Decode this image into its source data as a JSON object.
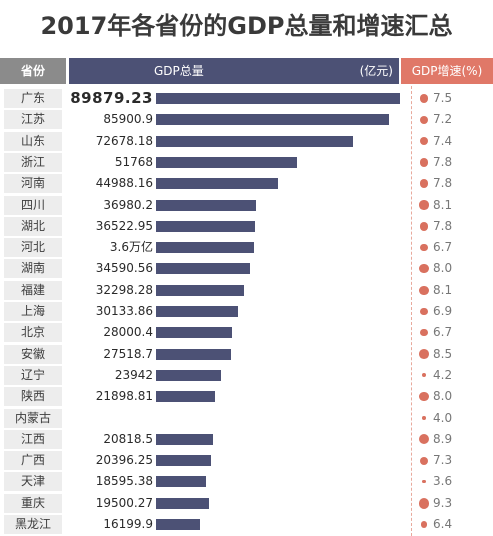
{
  "title": "2017年各省份的GDP总量和增速汇总",
  "header": {
    "province": "省份",
    "gdp": "GDP总量",
    "unit": "(亿元)",
    "growth": "GDP增速(%)"
  },
  "colors": {
    "bar": "#4c5175",
    "dot": "#d9715f",
    "growth_header": "#e07868"
  },
  "chart_data": {
    "type": "table",
    "title": "2017年各省份的GDP总量和增速汇总",
    "columns": [
      "省份",
      "GDP总量 (亿元)",
      "GDP增速(%)"
    ],
    "rows": [
      {
        "province": "广东",
        "gdp_text": "89879.23",
        "gdp": 89879.23,
        "growth_text": "7.5",
        "growth": 7.5
      },
      {
        "province": "江苏",
        "gdp_text": "85900.9",
        "gdp": 85900.9,
        "growth_text": "7.2",
        "growth": 7.2
      },
      {
        "province": "山东",
        "gdp_text": "72678.18",
        "gdp": 72678.18,
        "growth_text": "7.4",
        "growth": 7.4
      },
      {
        "province": "浙江",
        "gdp_text": "51768",
        "gdp": 51768,
        "growth_text": "7.8",
        "growth": 7.8
      },
      {
        "province": "河南",
        "gdp_text": "44988.16",
        "gdp": 44988.16,
        "growth_text": "7.8",
        "growth": 7.8
      },
      {
        "province": "四川",
        "gdp_text": "36980.2",
        "gdp": 36980.2,
        "growth_text": "8.1",
        "growth": 8.1
      },
      {
        "province": "湖北",
        "gdp_text": "36522.95",
        "gdp": 36522.95,
        "growth_text": "7.8",
        "growth": 7.8
      },
      {
        "province": "河北",
        "gdp_text": "3.6万亿",
        "gdp": 36000,
        "growth_text": "6.7",
        "growth": 6.7
      },
      {
        "province": "湖南",
        "gdp_text": "34590.56",
        "gdp": 34590.56,
        "growth_text": "8.0",
        "growth": 8.0
      },
      {
        "province": "福建",
        "gdp_text": "32298.28",
        "gdp": 32298.28,
        "growth_text": "8.1",
        "growth": 8.1
      },
      {
        "province": "上海",
        "gdp_text": "30133.86",
        "gdp": 30133.86,
        "growth_text": "6.9",
        "growth": 6.9
      },
      {
        "province": "北京",
        "gdp_text": "28000.4",
        "gdp": 28000.4,
        "growth_text": "6.7",
        "growth": 6.7
      },
      {
        "province": "安徽",
        "gdp_text": "27518.7",
        "gdp": 27518.7,
        "growth_text": "8.5",
        "growth": 8.5
      },
      {
        "province": "辽宁",
        "gdp_text": "23942",
        "gdp": 23942,
        "growth_text": "4.2",
        "growth": 4.2
      },
      {
        "province": "陕西",
        "gdp_text": "21898.81",
        "gdp": 21898.81,
        "growth_text": "8.0",
        "growth": 8.0
      },
      {
        "province": "内蒙古",
        "gdp_text": "",
        "gdp": null,
        "growth_text": "4.0",
        "growth": 4.0
      },
      {
        "province": "江西",
        "gdp_text": "20818.5",
        "gdp": 20818.5,
        "growth_text": "8.9",
        "growth": 8.9
      },
      {
        "province": "广西",
        "gdp_text": "20396.25",
        "gdp": 20396.25,
        "growth_text": "7.3",
        "growth": 7.3
      },
      {
        "province": "天津",
        "gdp_text": "18595.38",
        "gdp": 18595.38,
        "growth_text": "3.6",
        "growth": 3.6
      },
      {
        "province": "重庆",
        "gdp_text": "19500.27",
        "gdp": 19500.27,
        "growth_text": "9.3",
        "growth": 9.3
      },
      {
        "province": "黑龙江",
        "gdp_text": "16199.9",
        "gdp": 16199.9,
        "growth_text": "6.4",
        "growth": 6.4
      }
    ]
  }
}
